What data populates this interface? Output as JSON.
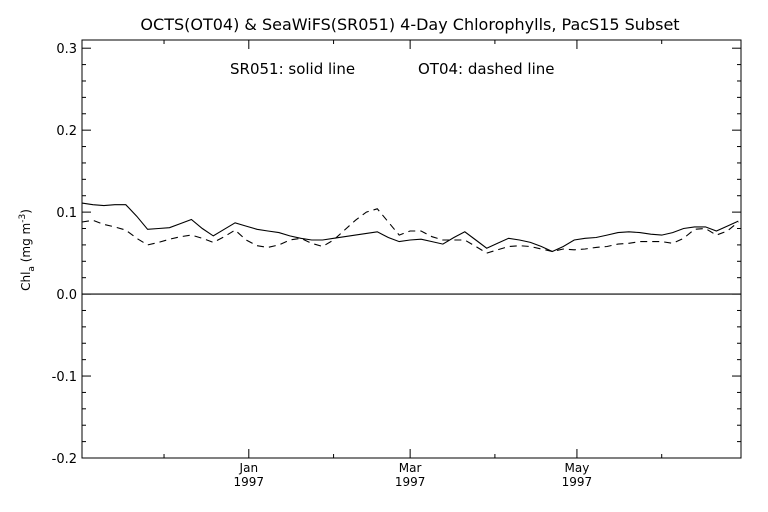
{
  "chart_data": {
    "type": "line",
    "title": "OCTS(OT04) & SeaWiFS(SR051) 4-Day Chlorophylls, PacS15 Subset",
    "annotation_left": "SR051: solid line",
    "annotation_right": "OT04: dashed line",
    "ylabel": "Chl",
    "ylabel_subscript": "a",
    "ylabel_units": " (mg m",
    "ylabel_units_sup": "-3",
    "ylabel_close": ")",
    "ylim": [
      -0.2,
      0.31
    ],
    "yticks": [
      "-0.2",
      "-0.1",
      "0.0",
      "0.1",
      "0.2",
      "0.3"
    ],
    "xlim": [
      "1996-11-01",
      "1997-06-30"
    ],
    "xticks": [
      {
        "date": "1997-01-01",
        "label": "Jan",
        "year": "1997"
      },
      {
        "date": "1997-03-01",
        "label": "Mar",
        "year": "1997"
      },
      {
        "date": "1997-05-01",
        "label": "May",
        "year": "1997"
      }
    ],
    "zero_line": true,
    "grid": false,
    "series": [
      {
        "name": "SR051",
        "style": "solid",
        "color": "#000000",
        "x": [
          "1996-11-01",
          "1996-11-05",
          "1996-11-09",
          "1996-11-13",
          "1996-11-17",
          "1996-11-21",
          "1996-11-25",
          "1996-11-29",
          "1996-12-03",
          "1996-12-07",
          "1996-12-11",
          "1996-12-15",
          "1996-12-19",
          "1996-12-23",
          "1996-12-27",
          "1996-12-31",
          "1997-01-04",
          "1997-01-08",
          "1997-01-12",
          "1997-01-16",
          "1997-01-20",
          "1997-01-24",
          "1997-01-28",
          "1997-02-01",
          "1997-02-05",
          "1997-02-09",
          "1997-02-13",
          "1997-02-17",
          "1997-02-21",
          "1997-02-25",
          "1997-03-01",
          "1997-03-05",
          "1997-03-09",
          "1997-03-13",
          "1997-03-17",
          "1997-03-21",
          "1997-03-25",
          "1997-03-29",
          "1997-04-02",
          "1997-04-06",
          "1997-04-10",
          "1997-04-14",
          "1997-04-18",
          "1997-04-22",
          "1997-04-26",
          "1997-04-30",
          "1997-05-04",
          "1997-05-08",
          "1997-05-12",
          "1997-05-16",
          "1997-05-20",
          "1997-05-24",
          "1997-05-28",
          "1997-06-01",
          "1997-06-05",
          "1997-06-09",
          "1997-06-13",
          "1997-06-17",
          "1997-06-21",
          "1997-06-25",
          "1997-06-29"
        ],
        "values": [
          0.111,
          0.109,
          0.108,
          0.109,
          0.109,
          0.095,
          0.079,
          0.08,
          0.081,
          0.086,
          0.091,
          0.08,
          0.071,
          0.079,
          0.087,
          0.083,
          0.079,
          0.077,
          0.075,
          0.071,
          0.068,
          0.066,
          0.066,
          0.068,
          0.07,
          0.072,
          0.074,
          0.076,
          0.069,
          0.064,
          0.066,
          0.067,
          0.064,
          0.061,
          0.069,
          0.076,
          0.066,
          0.056,
          0.062,
          0.068,
          0.066,
          0.063,
          0.058,
          0.052,
          0.058,
          0.066,
          0.068,
          0.069,
          0.072,
          0.075,
          0.076,
          0.075,
          0.073,
          0.072,
          0.075,
          0.08,
          0.082,
          0.082,
          0.077,
          0.083,
          0.089
        ]
      },
      {
        "name": "OT04",
        "style": "dashed",
        "color": "#000000",
        "x": [
          "1996-11-01",
          "1996-11-05",
          "1996-11-09",
          "1996-11-13",
          "1996-11-17",
          "1996-11-21",
          "1996-11-25",
          "1996-11-29",
          "1996-12-03",
          "1996-12-07",
          "1996-12-11",
          "1996-12-15",
          "1996-12-19",
          "1996-12-23",
          "1996-12-27",
          "1996-12-31",
          "1997-01-04",
          "1997-01-08",
          "1997-01-12",
          "1997-01-16",
          "1997-01-20",
          "1997-01-24",
          "1997-01-28",
          "1997-02-01",
          "1997-02-05",
          "1997-02-09",
          "1997-02-13",
          "1997-02-17",
          "1997-02-21",
          "1997-02-25",
          "1997-03-01",
          "1997-03-05",
          "1997-03-09",
          "1997-03-13",
          "1997-03-17",
          "1997-03-21",
          "1997-03-25",
          "1997-03-29",
          "1997-04-02",
          "1997-04-06",
          "1997-04-10",
          "1997-04-14",
          "1997-04-18",
          "1997-04-22",
          "1997-04-26",
          "1997-04-30",
          "1997-05-04",
          "1997-05-08",
          "1997-05-12",
          "1997-05-16",
          "1997-05-20",
          "1997-05-24",
          "1997-05-28",
          "1997-06-01",
          "1997-06-05",
          "1997-06-09",
          "1997-06-13",
          "1997-06-17",
          "1997-06-21",
          "1997-06-25",
          "1997-06-29"
        ],
        "values": [
          0.088,
          0.09,
          0.085,
          0.082,
          0.078,
          0.068,
          0.06,
          0.063,
          0.067,
          0.07,
          0.072,
          0.068,
          0.063,
          0.07,
          0.078,
          0.066,
          0.059,
          0.057,
          0.06,
          0.066,
          0.068,
          0.062,
          0.058,
          0.066,
          0.078,
          0.09,
          0.1,
          0.104,
          0.088,
          0.072,
          0.077,
          0.077,
          0.07,
          0.066,
          0.066,
          0.066,
          0.058,
          0.05,
          0.054,
          0.058,
          0.059,
          0.058,
          0.055,
          0.052,
          0.055,
          0.054,
          0.055,
          0.057,
          0.058,
          0.061,
          0.062,
          0.064,
          0.064,
          0.064,
          0.062,
          0.068,
          0.079,
          0.08,
          0.072,
          0.077,
          0.088
        ]
      }
    ]
  }
}
